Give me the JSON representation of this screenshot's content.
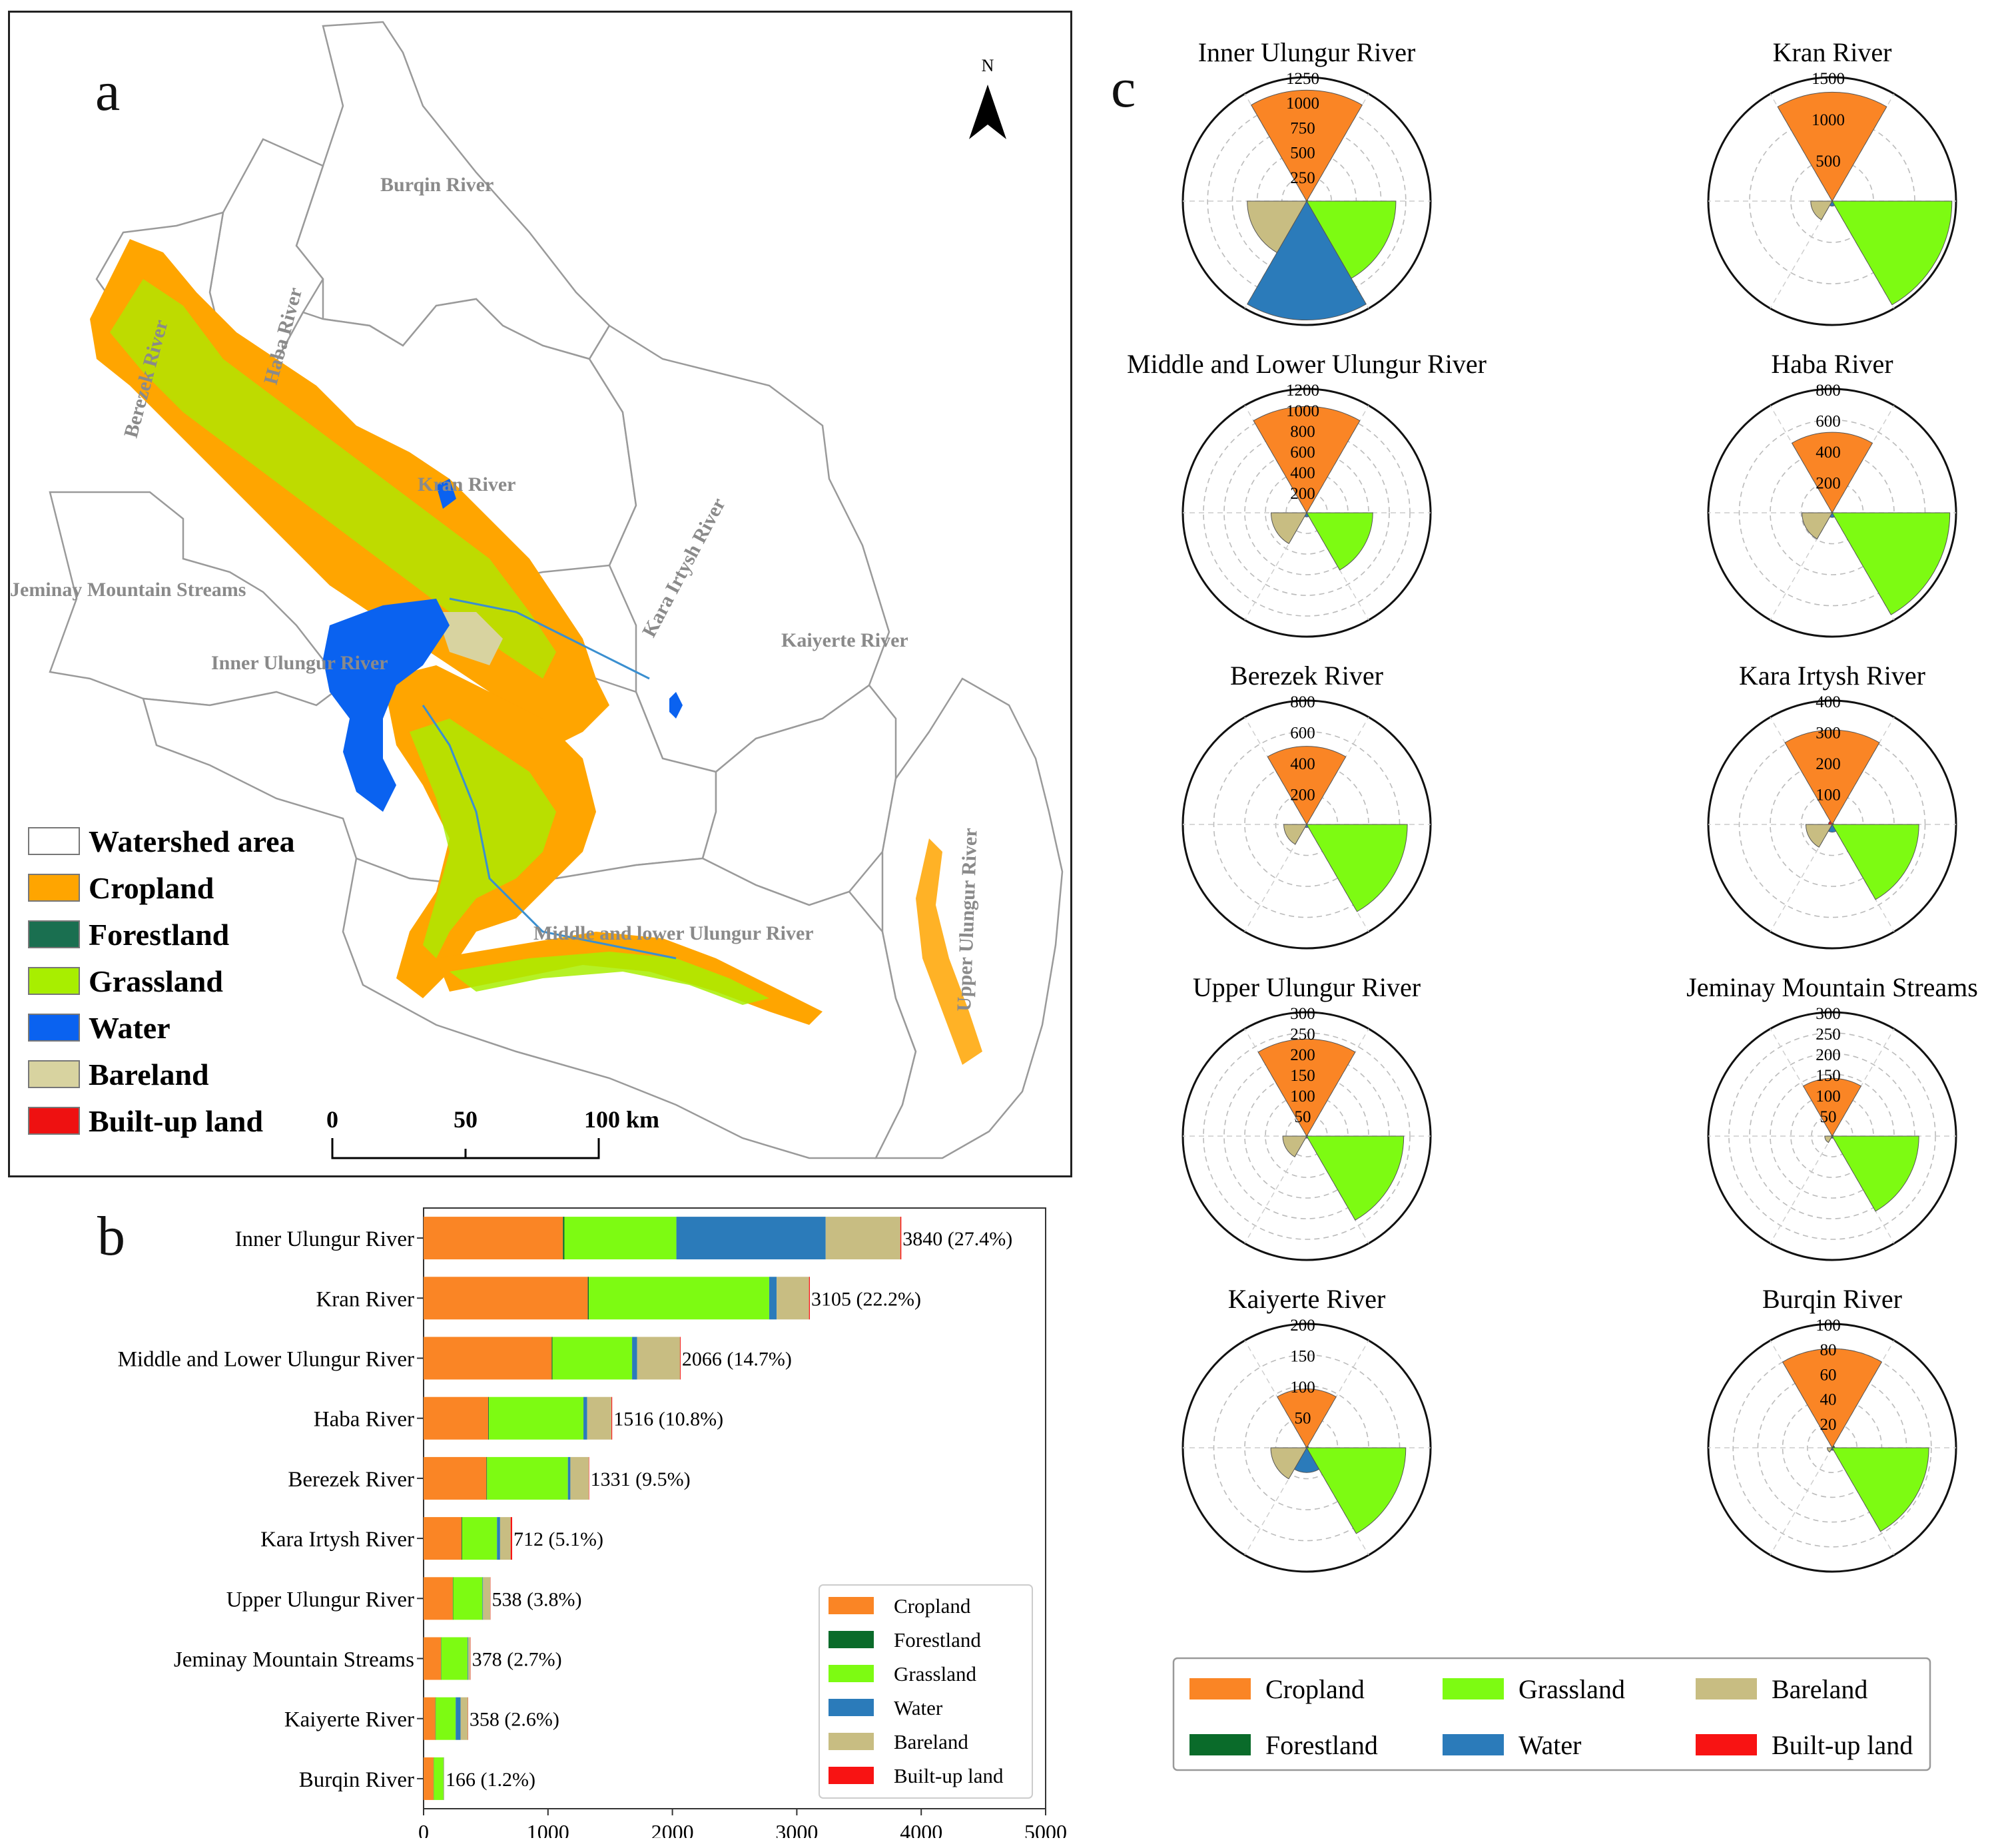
{
  "panel_letters": {
    "a": "a",
    "b": "b",
    "c": "c"
  },
  "colors": {
    "Cropland": "#fa8525",
    "Cropland_map": "#ffa500",
    "Forestland": "#0a6b2a",
    "Forestland_map": "#1a6f50",
    "Grassland": "#7dfb12",
    "Grassland_map": "#a8ee00",
    "Water": "#2b7bba",
    "Water_map": "#0a62f0",
    "Bareland": "#c8bd82",
    "Bareland_map": "#d8d3a0",
    "Built-up land": "#f81313",
    "Built-up land_map": "#ee1111"
  },
  "map": {
    "north_label": "N",
    "scale_labels": [
      "0",
      "50",
      "100 km"
    ],
    "legend": [
      "Watershed area",
      "Cropland",
      "Forestland",
      "Grassland",
      "Water",
      "Bareland",
      "Built-up land"
    ],
    "basin_labels": [
      "Burqin River",
      "Berezek River",
      "Haba River",
      "Kran River",
      "Kara Irtysh River",
      "Jeminay Mountain Streams",
      "Inner Ulungur River",
      "Kaiyerte River",
      "Middle and lower Ulungur River",
      "Upper Ulungur River"
    ]
  },
  "chart_data": [
    {
      "type": "bar",
      "orientation": "horizontal",
      "stacked": true,
      "categories": [
        "Inner Ulungur River",
        "Kran River",
        "Middle and Lower Ulungur River",
        "Haba River",
        "Berezek River",
        "Kara Irtysh River",
        "Upper Ulungur River",
        "Jeminay Mountain Streams",
        "Kaiyerte River",
        "Burqin River"
      ],
      "series": [
        {
          "name": "Cropland",
          "values": [
            1120,
            1320,
            1030,
            520,
            505,
            305,
            235,
            140,
            95,
            80
          ]
        },
        {
          "name": "Forestland",
          "values": [
            12,
            8,
            6,
            5,
            5,
            5,
            3,
            3,
            3,
            2
          ]
        },
        {
          "name": "Grassland",
          "values": [
            900,
            1450,
            640,
            760,
            650,
            280,
            235,
            210,
            160,
            78
          ]
        },
        {
          "name": "Water",
          "values": [
            1200,
            60,
            40,
            30,
            20,
            25,
            5,
            5,
            40,
            2
          ]
        },
        {
          "name": "Bareland",
          "values": [
            600,
            260,
            345,
            195,
            148,
            85,
            58,
            18,
            58,
            4
          ]
        },
        {
          "name": "Built-up land",
          "values": [
            8,
            7,
            5,
            6,
            3,
            12,
            2,
            2,
            2,
            0
          ]
        }
      ],
      "totals": [
        "3840 (27.4%)",
        "3105 (22.2%)",
        "2066 (14.7%)",
        "1516 (10.8%)",
        "1331 (9.5%)",
        "712 (5.1%)",
        "538 (3.8%)",
        "378 (2.7%)",
        "358 (2.6%)",
        "166 (1.2%)"
      ],
      "total_values": [
        3840,
        3105,
        2066,
        1516,
        1331,
        712,
        538,
        378,
        358,
        166
      ],
      "xlim": [
        0,
        5000
      ],
      "xticks": [
        "0",
        "1000",
        "2000",
        "3000",
        "4000",
        "5000"
      ],
      "legend": [
        "Cropland",
        "Forestland",
        "Grassland",
        "Water",
        "Bareland",
        "Built-up land"
      ],
      "legend_position": "bottom-right"
    },
    {
      "type": "polar-bar",
      "legend": [
        "Cropland",
        "Grassland",
        "Bareland",
        "Forestland",
        "Water",
        "Built-up land"
      ],
      "legend_position": "bottom",
      "order": [
        "Cropland",
        "Forestland",
        "Grassland",
        "Water",
        "Bareland",
        "Built-up land"
      ],
      "charts": [
        {
          "title": "Inner Ulungur River",
          "rmax": 1250,
          "ticks": [
            "250",
            "500",
            "750",
            "1000",
            "1250"
          ],
          "tick_values": [
            250,
            500,
            750,
            1000,
            1250
          ],
          "values": [
            1120,
            12,
            900,
            1200,
            600,
            8
          ]
        },
        {
          "title": "Kran River",
          "rmax": 1500,
          "ticks": [
            "500",
            "1000",
            "1500"
          ],
          "tick_values": [
            500,
            1000,
            1500
          ],
          "values": [
            1320,
            8,
            1450,
            60,
            260,
            7
          ]
        },
        {
          "title": "Middle and Lower Ulungur River",
          "rmax": 1200,
          "ticks": [
            "200",
            "400",
            "600",
            "800",
            "1000",
            "1200"
          ],
          "tick_values": [
            200,
            400,
            600,
            800,
            1000,
            1200
          ],
          "values": [
            1030,
            6,
            640,
            40,
            345,
            5
          ]
        },
        {
          "title": "Haba River",
          "rmax": 800,
          "ticks": [
            "200",
            "400",
            "600",
            "800"
          ],
          "tick_values": [
            200,
            400,
            600,
            800
          ],
          "values": [
            520,
            5,
            760,
            30,
            195,
            6
          ]
        },
        {
          "title": "Berezek River",
          "rmax": 800,
          "ticks": [
            "200",
            "400",
            "600",
            "800"
          ],
          "tick_values": [
            200,
            400,
            600,
            800
          ],
          "values": [
            505,
            5,
            650,
            20,
            148,
            3
          ]
        },
        {
          "title": "Kara Irtysh River",
          "rmax": 400,
          "ticks": [
            "100",
            "200",
            "300",
            "400"
          ],
          "tick_values": [
            100,
            200,
            300,
            400
          ],
          "values": [
            305,
            5,
            280,
            25,
            85,
            12
          ]
        },
        {
          "title": "Upper Ulungur River",
          "rmax": 300,
          "ticks": [
            "50",
            "100",
            "150",
            "200",
            "250",
            "300"
          ],
          "tick_values": [
            50,
            100,
            150,
            200,
            250,
            300
          ],
          "values": [
            235,
            3,
            235,
            5,
            58,
            2
          ]
        },
        {
          "title": "Jeminay Mountain Streams",
          "rmax": 300,
          "ticks": [
            "50",
            "100",
            "150",
            "200",
            "250",
            "300"
          ],
          "tick_values": [
            50,
            100,
            150,
            200,
            250,
            300
          ],
          "values": [
            140,
            3,
            210,
            5,
            18,
            2
          ]
        },
        {
          "title": "Kaiyerte River",
          "rmax": 200,
          "ticks": [
            "50",
            "100",
            "150",
            "200"
          ],
          "tick_values": [
            50,
            100,
            150,
            200
          ],
          "values": [
            95,
            3,
            160,
            40,
            58,
            2
          ]
        },
        {
          "title": "Burqin River",
          "rmax": 100,
          "ticks": [
            "20",
            "40",
            "60",
            "80",
            "100"
          ],
          "tick_values": [
            20,
            40,
            60,
            80,
            100
          ],
          "values": [
            80,
            2,
            78,
            2,
            4,
            0
          ]
        }
      ]
    }
  ]
}
